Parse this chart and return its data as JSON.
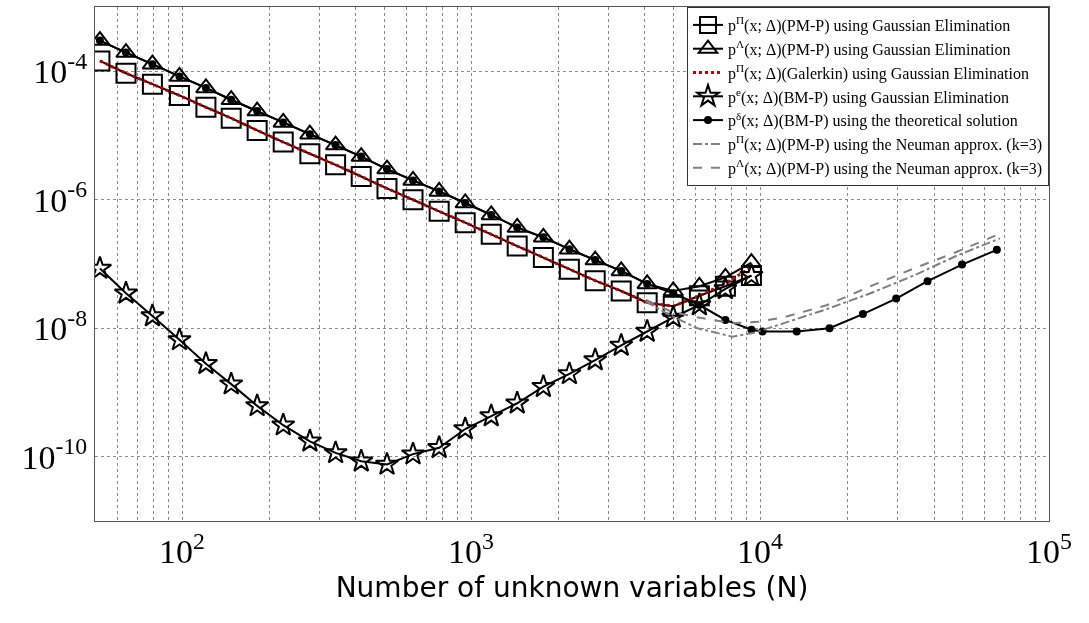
{
  "chart_data": {
    "type": "line",
    "xlabel": "Number of unknown variables (N)",
    "log": "xy",
    "grid": true,
    "legend": "top right",
    "xlim": [
      50,
      100000
    ],
    "ylim": [
      1e-11,
      0.001
    ],
    "xticks": [
      {
        "value": 60,
        "label": null
      },
      {
        "value": 70,
        "label": null
      },
      {
        "value": 80,
        "label": null
      },
      {
        "value": 90,
        "label": null
      },
      {
        "value": 100,
        "label": "10$^{2}$"
      },
      {
        "value": 200,
        "label": null
      },
      {
        "value": 300,
        "label": null
      },
      {
        "value": 400,
        "label": null
      },
      {
        "value": 500,
        "label": null
      },
      {
        "value": 600,
        "label": null
      },
      {
        "value": 700,
        "label": null
      },
      {
        "value": 800,
        "label": null
      },
      {
        "value": 900,
        "label": null
      },
      {
        "value": 1000,
        "label": "10$^{3}$"
      },
      {
        "value": 2000,
        "label": null
      },
      {
        "value": 3000,
        "label": null
      },
      {
        "value": 4000,
        "label": null
      },
      {
        "value": 5000,
        "label": null
      },
      {
        "value": 6000,
        "label": null
      },
      {
        "value": 7000,
        "label": null
      },
      {
        "value": 8000,
        "label": null
      },
      {
        "value": 9000,
        "label": null
      },
      {
        "value": 10000,
        "label": "10$^{4}$"
      },
      {
        "value": 20000,
        "label": null
      },
      {
        "value": 30000,
        "label": null
      },
      {
        "value": 40000,
        "label": null
      },
      {
        "value": 50000,
        "label": null
      },
      {
        "value": 60000,
        "label": null
      },
      {
        "value": 70000,
        "label": null
      },
      {
        "value": 80000,
        "label": null
      },
      {
        "value": 90000,
        "label": null
      },
      {
        "value": 100000,
        "label": "10$^{5}$"
      }
    ],
    "yticks": [
      {
        "value": 1e-10,
        "label": "10$^{-10}$"
      },
      {
        "value": 1e-08,
        "label": "10$^{-8}$"
      },
      {
        "value": 1e-06,
        "label": "10$^{-6}$"
      },
      {
        "value": 0.0001,
        "label": "10$^{-4}$"
      }
    ],
    "x": [
      52,
      64,
      79,
      98,
      121,
      148,
      182,
      224,
      277,
      340,
      417,
      512,
      630,
      776,
      955,
      1175,
      1445,
      1780,
      2190,
      2690,
      3310,
      4070,
      5010,
      6170,
      7590,
      9340
    ],
    "series": [
      {
        "name": "p$^{Π}$(x; Δ)(PM-P) using Gaussian Elimination",
        "color": "#000000",
        "marker": "square",
        "line_style": "solid",
        "values": [
          0.000145,
          9.3e-05,
          6.3e-05,
          4.2e-05,
          2.75e-05,
          1.86e-05,
          1.2e-05,
          7.9e-06,
          5.2e-06,
          3.5e-06,
          2.3e-06,
          1.5e-06,
          1e-06,
          6.6e-07,
          4.4e-07,
          2.9e-07,
          1.9e-07,
          1.26e-07,
          8.3e-08,
          5.5e-08,
          3.8e-08,
          2.5e-08,
          2.2e-08,
          3.2e-08,
          4.5e-08,
          6.6e-08
        ]
      },
      {
        "name": "p$^{Λ}$(x; Δ)(PM-P) using Gaussian Elimination",
        "color": "#000000",
        "marker": "triangle",
        "line_style": "solid",
        "values": [
          0.0003,
          0.000195,
          0.000129,
          8.3e-05,
          5.5e-05,
          3.6e-05,
          2.4e-05,
          1.6e-05,
          1.05e-05,
          7.1e-06,
          4.7e-06,
          3e-06,
          2e-06,
          1.35e-06,
          8.9e-07,
          5.8e-07,
          3.7e-07,
          2.6e-07,
          1.7e-07,
          1.15e-07,
          7.8e-08,
          4.9e-08,
          3.8e-08,
          4.5e-08,
          6.2e-08,
          1.05e-07
        ]
      },
      {
        "name": "p$^{Π}$(x; Δ)(Galerkin) using Gaussian Elimination",
        "color": "#c00000",
        "marker": "none",
        "line_style": "dotted",
        "values": [
          0.000145,
          9.3e-05,
          6.3e-05,
          4.2e-05,
          2.75e-05,
          1.86e-05,
          1.2e-05,
          7.9e-06,
          5.2e-06,
          3.5e-06,
          2.3e-06,
          1.5e-06,
          1e-06,
          6.6e-07,
          4.4e-07,
          2.9e-07,
          1.9e-07,
          1.26e-07,
          8.3e-08,
          5.5e-08,
          3.8e-08,
          2.5e-08,
          2.2e-08,
          3.2e-08,
          5e-08,
          8.9e-08
        ]
      },
      {
        "name": "p$^{e}$(x; Δ)(BM-P) using Gaussian Elimination",
        "color": "#000000",
        "marker": "star",
        "line_style": "solid",
        "values": [
          8.5e-08,
          3.5e-08,
          1.55e-08,
          6.6e-09,
          2.8e-09,
          1.35e-09,
          6.2e-10,
          3.1e-10,
          1.74e-10,
          1.15e-10,
          8.5e-11,
          7.6e-11,
          1.1e-10,
          1.38e-10,
          2.7e-10,
          4.3e-10,
          6.8e-10,
          1.23e-09,
          1.95e-09,
          3.2e-09,
          5.4e-09,
          8.9e-09,
          1.48e-08,
          2.3e-08,
          4.1e-08,
          6.6e-08
        ]
      },
      {
        "name": "p$^{δ}$(x; Δ)(BM-P) using the theoretical solution",
        "color": "#000000",
        "marker": "circle",
        "line_style": "solid",
        "x": [
          52,
          64,
          79,
          98,
          121,
          148,
          182,
          224,
          277,
          340,
          417,
          512,
          630,
          776,
          955,
          1175,
          1445,
          1780,
          2190,
          2690,
          3310,
          4070,
          5010,
          6170,
          7590,
          9340,
          10200,
          13400,
          17400,
          22700,
          29600,
          38000,
          50000,
          66000
        ],
        "values": [
          0.0003,
          0.000195,
          0.000129,
          8.3e-05,
          5.5e-05,
          3.6e-05,
          2.4e-05,
          1.6e-05,
          1.05e-05,
          7.1e-06,
          4.7e-06,
          3e-06,
          2e-06,
          1.35e-06,
          8.9e-07,
          5.8e-07,
          3.7e-07,
          2.6e-07,
          1.7e-07,
          1.15e-07,
          7.8e-08,
          4.9e-08,
          3.5e-08,
          2.3e-08,
          1.35e-08,
          9.5e-09,
          8.9e-09,
          8.9e-09,
          1e-08,
          1.66e-08,
          2.9e-08,
          5.4e-08,
          9.8e-08,
          1.66e-07
        ]
      },
      {
        "name": "p$^{Π}$(x; Δ)(PM-P) using the Neuman approx. (k=3)",
        "color": "#808080",
        "marker": "none",
        "line_style": "dashdot",
        "x": [
          4030,
          4950,
          6070,
          8020,
          9520,
          12100,
          17100,
          24100,
          34000,
          48000,
          67600
        ],
        "values": [
          2.6e-08,
          1.55e-08,
          1e-08,
          7.4e-09,
          8.5e-09,
          1.2e-08,
          2e-08,
          3.5e-08,
          6.6e-08,
          1.35e-07,
          2.5e-07
        ]
      },
      {
        "name": "p$^{Λ}$(x; Δ)(PM-P) using the Neuman approx. (k=3)",
        "color": "#808080",
        "marker": "none",
        "line_style": "dashed",
        "x": [
          4030,
          4950,
          6070,
          8020,
          9850,
          12100,
          17100,
          24100,
          34000,
          48000,
          67600
        ],
        "values": [
          2.75e-08,
          1.8e-08,
          1.48e-08,
          1.2e-08,
          1.26e-08,
          1.48e-08,
          2.3e-08,
          4.5e-08,
          8.5e-08,
          1.55e-07,
          2.95e-07
        ]
      }
    ]
  }
}
